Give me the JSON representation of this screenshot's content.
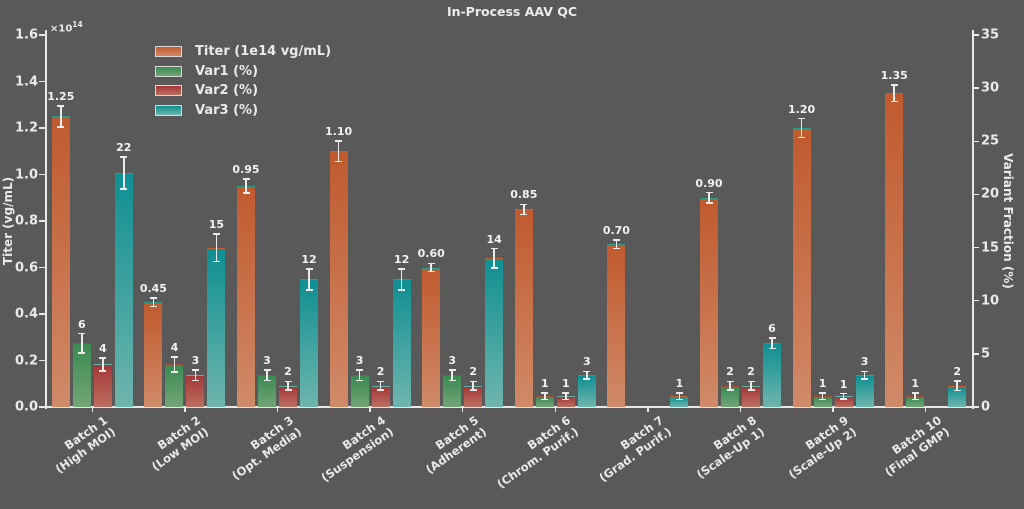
{
  "title": "In-Process AAV QC",
  "colors": {
    "background": "#595959",
    "text": "#eaeaea",
    "axis": "#e8e8e8",
    "error_bar": "#ebebeb"
  },
  "chart_data": {
    "type": "bar",
    "title": "In-Process AAV QC",
    "grid": false,
    "legend_position": "upper-left",
    "categories": [
      "Batch 1\n(High MOI)",
      "Batch 2\n(Low MOI)",
      "Batch 3\n(Opt. Media)",
      "Batch 4\n(Suspension)",
      "Batch 5\n(Adherent)",
      "Batch 6\n(Chrom. Purif.)",
      "Batch 7\n(Grad. Purif.)",
      "Batch 8\n(Scale-Up 1)",
      "Batch 9\n(Scale-Up 2)",
      "Batch 10\n(Final GMP)"
    ],
    "series": [
      {
        "name": "Titer (1e14 vg/mL)",
        "axis": "left",
        "values": [
          1.25,
          0.45,
          0.95,
          1.1,
          0.6,
          0.85,
          0.7,
          0.9,
          1.2,
          1.35
        ],
        "errors": [
          0.045,
          0.018,
          0.03,
          0.045,
          0.018,
          0.022,
          0.018,
          0.022,
          0.04,
          0.035
        ],
        "labels": [
          "1.25",
          "0.45",
          "0.95",
          "1.10",
          "0.60",
          "0.85",
          "0.70",
          "0.90",
          "1.20",
          "1.35"
        ],
        "color_top": "#c05a2e",
        "color_bottom": "#d08a68",
        "edge_color": "#2a9d8f"
      },
      {
        "name": "Var1 (%)",
        "axis": "right",
        "values": [
          6,
          4,
          3,
          3,
          3,
          1,
          0,
          2,
          1,
          1
        ],
        "errors": [
          0.9,
          0.7,
          0.5,
          0.5,
          0.5,
          0.3,
          0,
          0.4,
          0.3,
          0.3
        ],
        "labels": [
          "6",
          "4",
          "3",
          "3",
          "3",
          "1",
          "",
          "2",
          "1",
          "1"
        ],
        "color_top": "#3a8a52",
        "color_bottom": "#74a577",
        "edge_color": "#a84a3a"
      },
      {
        "name": "Var2 (%)",
        "axis": "right",
        "values": [
          4,
          3,
          2,
          2,
          2,
          1,
          0,
          2,
          1,
          0
        ],
        "errors": [
          0.6,
          0.5,
          0.4,
          0.4,
          0.4,
          0.3,
          0,
          0.4,
          0.25,
          0
        ],
        "labels": [
          "4",
          "3",
          "2",
          "2",
          "2",
          "1",
          "",
          "2",
          "1",
          ""
        ],
        "color_top": "#a53737",
        "color_bottom": "#bb6f5f",
        "edge_color": "#5fb0a6"
      },
      {
        "name": "Var3 (%)",
        "axis": "right",
        "values": [
          22,
          15,
          12,
          12,
          14,
          3,
          1,
          6,
          3,
          2
        ],
        "errors": [
          1.5,
          1.3,
          1.0,
          1.0,
          0.9,
          0.35,
          0.3,
          0.5,
          0.35,
          0.45
        ],
        "labels": [
          "22",
          "15",
          "12",
          "12",
          "14",
          "3",
          "1",
          "6",
          "3",
          "2"
        ],
        "color_top": "#0f8f92",
        "color_bottom": "#6fb5ad",
        "edge_color": "#c4622f"
      }
    ],
    "left_axis": {
      "label": "Titer (vg/mL)",
      "ticks": [
        0.0,
        0.2,
        0.4,
        0.6,
        0.8,
        1.0,
        1.2,
        1.4,
        1.6
      ],
      "max": 1.6,
      "offset_base": "×10",
      "offset_exp": "14"
    },
    "right_axis": {
      "label": "Variant Fraction (%)",
      "ticks": [
        0,
        5,
        10,
        15,
        20,
        25,
        30,
        35
      ],
      "max": 35
    }
  }
}
